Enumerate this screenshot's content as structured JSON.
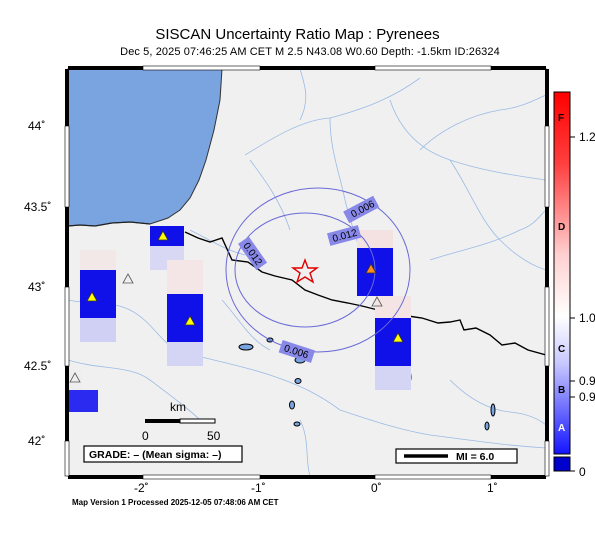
{
  "header": {
    "title": "SISCAN Uncertainty Ratio Map : Pyrenees",
    "subtitle": "Dec  5, 2025 07:46:25 AM CET   M 2.5   N43.08 W0.60   Depth: -1.5km   ID:26324"
  },
  "map": {
    "lat_ticks": [
      "44˚",
      "43.5˚",
      "43˚",
      "42.5˚",
      "42˚"
    ],
    "lon_ticks": [
      "-2˚",
      "-1˚",
      "0˚",
      "1˚"
    ],
    "contours": [
      "0.006",
      "0.012",
      "0.012",
      "0.006"
    ],
    "scale_bar": {
      "unit": "km",
      "left": "0",
      "right": "50"
    },
    "grade_box": "GRADE: – (Mean sigma: –)",
    "mi_legend": "MI = 6.0",
    "colors": {
      "sea": "#7aa4e0",
      "land": "#f0f0f0",
      "high_cell": "#0000ee",
      "contour": "#6a6ad8"
    }
  },
  "colorbar": {
    "tick_values": [
      "1.2",
      "1.0",
      "0.9",
      "0.9",
      "0"
    ],
    "letters": [
      "F",
      "D",
      "C",
      "B",
      "A"
    ]
  },
  "footer": "Map Version 1 Processed 2025-12-05 07:48:06 AM CET"
}
